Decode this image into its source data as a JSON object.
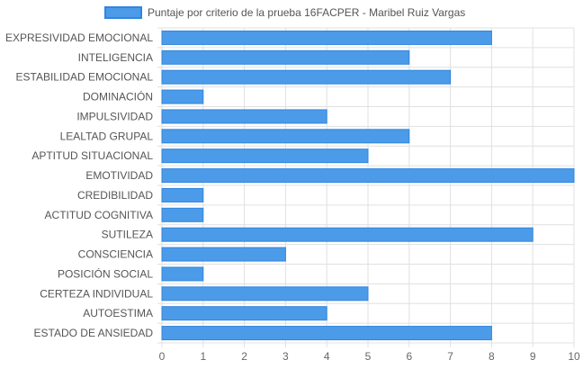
{
  "chart_data": {
    "type": "bar",
    "orientation": "horizontal",
    "legend": {
      "position": "top",
      "label": "Puntaje por criterio de la prueba 16FACPER - Maribel Ruiz Vargas"
    },
    "categories": [
      "EXPRESIVIDAD EMOCIONAL",
      "INTELIGENCIA",
      "ESTABILIDAD EMOCIONAL",
      "DOMINACIÓN",
      "IMPULSIVIDAD",
      "LEALTAD GRUPAL",
      "APTITUD SITUACIONAL",
      "EMOTIVIDAD",
      "CREDIBILIDAD",
      "ACTITUD COGNITIVA",
      "SUTILEZA",
      "CONSCIENCIA",
      "POSICIÓN SOCIAL",
      "CERTEZA INDIVIDUAL",
      "AUTOESTIMA",
      "ESTADO DE ANSIEDAD"
    ],
    "series": [
      {
        "name": "Puntaje por criterio de la prueba 16FACPER - Maribel Ruiz Vargas",
        "values": [
          8,
          6,
          7,
          1,
          4,
          6,
          5,
          10,
          1,
          1,
          9,
          3,
          1,
          5,
          4,
          8
        ]
      }
    ],
    "xlim": [
      0,
      10
    ],
    "xticks": [
      "0",
      "1",
      "2",
      "3",
      "4",
      "5",
      "6",
      "7",
      "8",
      "9",
      "10"
    ],
    "grid": true,
    "colors": {
      "bar_fill": "#4c9be8",
      "bar_stroke": "#2f86e0",
      "grid": "#e0e0e0"
    }
  }
}
